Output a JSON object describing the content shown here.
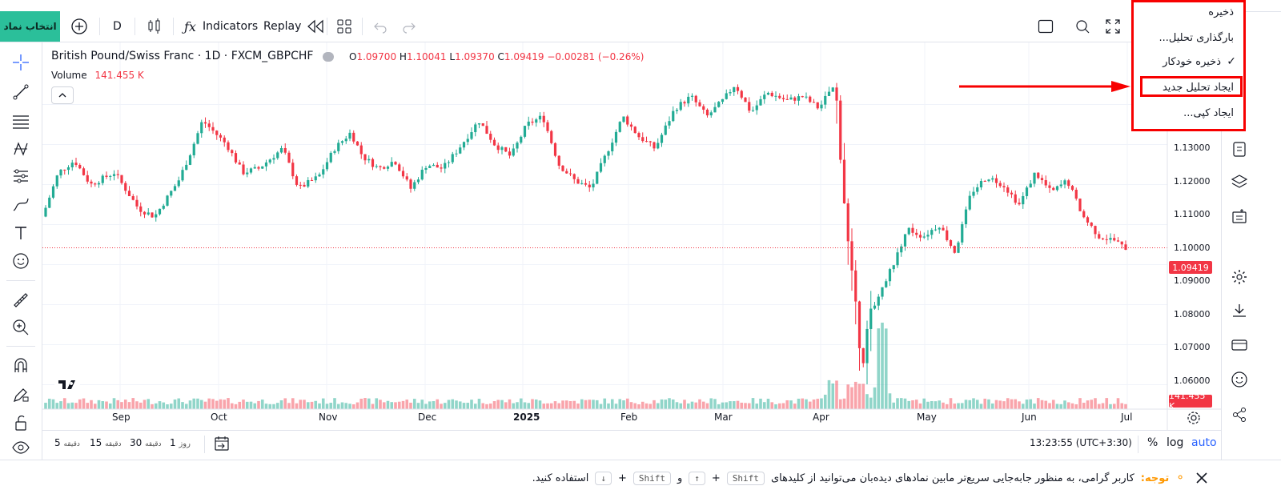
{
  "toolbar": {
    "symbol_button": "انتخاب نماد",
    "interval": "D",
    "indicators_label": "Indicators",
    "replay_label": "Replay"
  },
  "legend": {
    "title": "British Pound/Swiss Franc · 1D · FXCM_GBPCHF",
    "open_key": "O",
    "open": "1.09700",
    "high_key": "H",
    "high": "1.10041",
    "low_key": "L",
    "low": "1.09370",
    "close_key": "C",
    "close": "1.09419",
    "change": "−0.00281 (−0.26%)",
    "volume_label": "Volume",
    "volume_value": "141.455 K"
  },
  "price_axis": {
    "labels": [
      "1.13000",
      "1.12000",
      "1.11000",
      "1.10000",
      "1.09000",
      "1.08000",
      "1.07000",
      "1.06000"
    ],
    "last_price_tag": "1.09419",
    "volume_tag": "141.455 K"
  },
  "time_axis": {
    "labels": [
      "Sep",
      "Oct",
      "Nov",
      "Dec",
      "2025",
      "Feb",
      "Mar",
      "Apr",
      "May",
      "Jun",
      "Jul"
    ]
  },
  "bottom": {
    "ranges": [
      {
        "num": "5",
        "unit": "دقیقه"
      },
      {
        "num": "15",
        "unit": "دقیقه"
      },
      {
        "num": "30",
        "unit": "دقیقه"
      },
      {
        "num": "1",
        "unit": "روز"
      }
    ],
    "clock": "13:23:55 (UTC+3:30)",
    "percent": "%",
    "log": "log",
    "auto": "auto"
  },
  "menu": {
    "items": [
      "ذخیره",
      "بارگذاری تحلیل...",
      "ذخیره خودکار",
      "ایجاد تحلیل جدید",
      "ایجاد کپی..."
    ],
    "checkmark": "✓"
  },
  "notice": {
    "label": "توجه:",
    "text_part1": "کاربر گرامی، به منظور جابه‌جایی سریع‌تر مابین نمادهای دیده‌بان می‌توانید از کلیدهای",
    "key_shift": "Shift",
    "plus": "+",
    "up_arrow": "↑",
    "and": "و",
    "down_arrow": "↓",
    "text_part2": "استفاده کنید."
  },
  "colors": {
    "up": "#22ab94",
    "down": "#f23645",
    "accent": "#2962ff",
    "highlight": "#f70000"
  }
}
